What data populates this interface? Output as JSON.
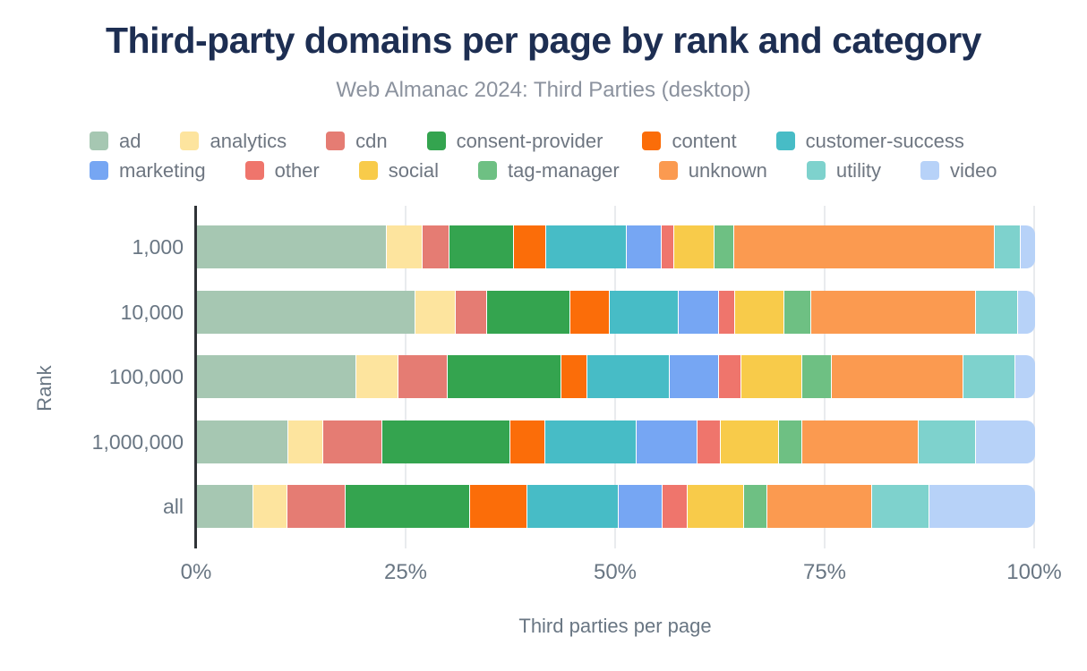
{
  "title": "Third-party domains per page by rank and category",
  "subtitle": "Web Almanac 2024: Third Parties (desktop)",
  "y_axis_title": "Rank",
  "x_axis_title": "Third parties per page",
  "x_ticks": [
    {
      "label": "0%",
      "value": 0
    },
    {
      "label": "25%",
      "value": 25
    },
    {
      "label": "50%",
      "value": 50
    },
    {
      "label": "75%",
      "value": 75
    },
    {
      "label": "100%",
      "value": 100
    }
  ],
  "gridline_values": [
    25,
    50,
    75,
    100
  ],
  "colors": {
    "title": "#1d2e52",
    "subtitle": "#8b929e",
    "axis_text": "#697683",
    "axis_line": "#2f3337",
    "gridline": "#e9ebee"
  },
  "chart_data": {
    "type": "bar",
    "orientation": "horizontal",
    "stacked": true,
    "unit": "%",
    "xlim": [
      0,
      100
    ],
    "grid": true,
    "legend_position": "top-left",
    "legend_rows": [
      6,
      7
    ],
    "categories": [
      "1,000",
      "10,000",
      "100,000",
      "1,000,000",
      "all"
    ],
    "series": [
      {
        "name": "ad",
        "color": "#a6c7b2",
        "values": [
          22.5,
          26.0,
          18.9,
          10.8,
          6.6
        ]
      },
      {
        "name": "analytics",
        "color": "#fde49e",
        "values": [
          4.3,
          4.8,
          5.0,
          4.2,
          4.1
        ]
      },
      {
        "name": "cdn",
        "color": "#e57c73",
        "values": [
          3.2,
          3.7,
          5.9,
          7.0,
          6.9
        ]
      },
      {
        "name": "consent-provider",
        "color": "#34a44f",
        "values": [
          7.7,
          9.9,
          13.6,
          15.3,
          14.9
        ]
      },
      {
        "name": "content",
        "color": "#fb6d09",
        "values": [
          3.9,
          4.7,
          3.1,
          4.2,
          6.8
        ]
      },
      {
        "name": "customer-success",
        "color": "#47bcc6",
        "values": [
          9.6,
          8.3,
          9.8,
          10.9,
          10.9
        ]
      },
      {
        "name": "marketing",
        "color": "#76a6f3",
        "values": [
          4.2,
          4.8,
          5.9,
          7.2,
          5.3
        ]
      },
      {
        "name": "other",
        "color": "#ef756c",
        "values": [
          1.4,
          1.9,
          2.7,
          2.8,
          2.9
        ]
      },
      {
        "name": "social",
        "color": "#f8cb4a",
        "values": [
          4.9,
          5.9,
          7.2,
          6.9,
          6.8
        ]
      },
      {
        "name": "tag-manager",
        "color": "#6ec083",
        "values": [
          2.3,
          3.2,
          3.6,
          2.8,
          2.8
        ]
      },
      {
        "name": "unknown",
        "color": "#fb9a50",
        "values": [
          31.1,
          19.7,
          15.6,
          13.9,
          12.5
        ]
      },
      {
        "name": "utility",
        "color": "#7ed2cd",
        "values": [
          3.1,
          5.0,
          6.2,
          6.9,
          6.8
        ]
      },
      {
        "name": "video",
        "color": "#b7d2f8",
        "values": [
          1.8,
          2.1,
          2.5,
          7.1,
          12.7
        ]
      }
    ]
  }
}
